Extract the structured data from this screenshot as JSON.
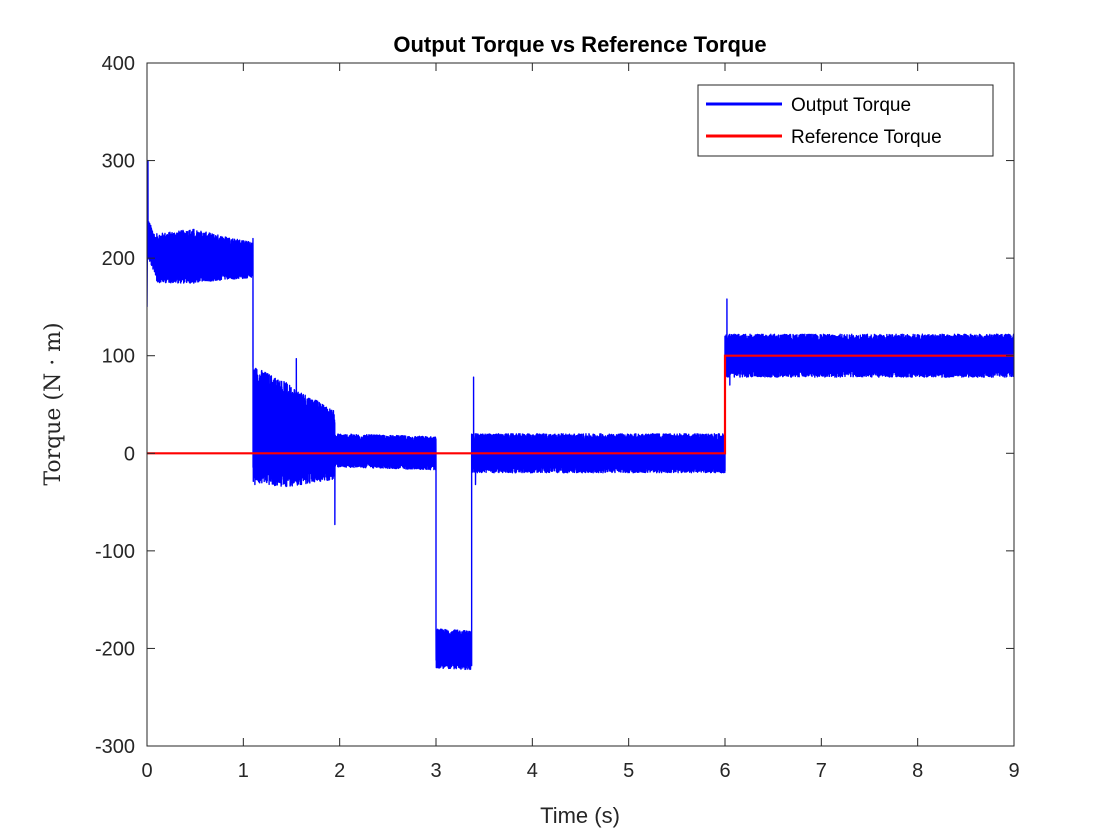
{
  "chart_data": {
    "type": "line",
    "title": "Output Torque vs Reference Torque",
    "xlabel": "Time (s)",
    "ylabel": "Torque (N · m)",
    "xlim": [
      0,
      9
    ],
    "ylim": [
      -300,
      400
    ],
    "xticks": [
      0,
      1,
      2,
      3,
      4,
      5,
      6,
      7,
      8,
      9
    ],
    "yticks": [
      400,
      300,
      200,
      100,
      0,
      -100,
      -200,
      -300
    ],
    "grid": false,
    "legend_position": "top-right",
    "colors": {
      "output": "#0000ff",
      "reference": "#ff0000"
    },
    "series": [
      {
        "name": "Output Torque",
        "color": "#0000ff",
        "segments": [
          {
            "t": [
              0.0,
              0.01
            ],
            "mean": [
              150,
              300
            ],
            "amp": [
              0,
              0
            ]
          },
          {
            "t": [
              0.01,
              0.1
            ],
            "mean": [
              220,
              200
            ],
            "amp": [
              20,
              20
            ]
          },
          {
            "t": [
              0.1,
              0.5
            ],
            "mean": [
              200,
              202
            ],
            "amp": [
              25,
              28
            ]
          },
          {
            "t": [
              0.5,
              1.1
            ],
            "mean": [
              202,
              198
            ],
            "amp": [
              27,
              18
            ]
          },
          {
            "t": [
              1.1,
              1.4
            ],
            "mean": [
              30,
              20
            ],
            "amp": [
              60,
              55
            ]
          },
          {
            "t": [
              1.4,
              1.95
            ],
            "mean": [
              20,
              8
            ],
            "amp": [
              55,
              35
            ]
          },
          {
            "t": [
              1.95,
              3.0
            ],
            "mean": [
              3,
              0
            ],
            "amp": [
              17,
              17
            ]
          },
          {
            "t": [
              3.0,
              3.37
            ],
            "mean": [
              -200,
              -202
            ],
            "amp": [
              20,
              20
            ]
          },
          {
            "t": [
              3.37,
              6.0
            ],
            "mean": [
              0,
              0
            ],
            "amp": [
              20,
              20
            ]
          },
          {
            "t": [
              6.0,
              9.0
            ],
            "mean": [
              100,
              100
            ],
            "amp": [
              22,
              22
            ]
          }
        ],
        "spikes": [
          {
            "t": 0.01,
            "value": 300
          },
          {
            "t": 1.1,
            "value": 220
          },
          {
            "t": 1.12,
            "value": -32
          },
          {
            "t": 1.55,
            "value": 97
          },
          {
            "t": 1.95,
            "value": -73
          },
          {
            "t": 3.01,
            "value": -215
          },
          {
            "t": 3.39,
            "value": 78
          },
          {
            "t": 3.41,
            "value": -32
          },
          {
            "t": 6.02,
            "value": 158
          },
          {
            "t": 6.05,
            "value": 70
          }
        ]
      },
      {
        "name": "Reference Torque",
        "color": "#ff0000",
        "x": [
          0,
          6,
          6,
          9
        ],
        "y": [
          0,
          0,
          100,
          100
        ]
      }
    ]
  }
}
